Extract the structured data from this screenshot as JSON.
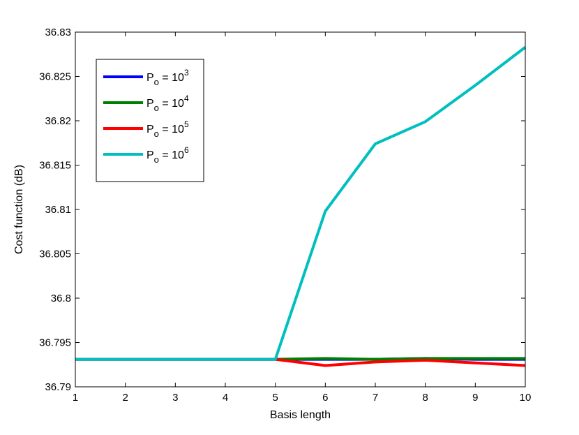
{
  "chart_data": {
    "type": "line",
    "title": "",
    "xlabel": "Basis length",
    "ylabel": "Cost function (dB)",
    "xlim": [
      1,
      10
    ],
    "ylim": [
      36.79,
      36.83
    ],
    "xticks": [
      1,
      2,
      3,
      4,
      5,
      6,
      7,
      8,
      9,
      10
    ],
    "yticks": [
      36.79,
      36.795,
      36.8,
      36.805,
      36.81,
      36.815,
      36.82,
      36.825,
      36.83
    ],
    "ytick_labels": [
      "36.79",
      "36.795",
      "36.8",
      "36.805",
      "36.81",
      "36.815",
      "36.82",
      "36.825",
      "36.83"
    ],
    "grid": false,
    "legend_position": "top-left",
    "x": [
      1,
      2,
      3,
      4,
      5,
      6,
      7,
      8,
      9,
      10
    ],
    "series": [
      {
        "name_base": "P",
        "name_sub": "o",
        "name_mid": " = 10",
        "name_sup": "3",
        "color": "#0000ff",
        "values": [
          36.7931,
          36.7931,
          36.7931,
          36.7931,
          36.7931,
          36.7931,
          36.7931,
          36.7932,
          36.7931,
          36.7931
        ]
      },
      {
        "name_base": "P",
        "name_sub": "o",
        "name_mid": " = 10",
        "name_sup": "4",
        "color": "#008000",
        "values": [
          36.7931,
          36.7931,
          36.7931,
          36.7931,
          36.7931,
          36.7932,
          36.7931,
          36.7932,
          36.7932,
          36.7932
        ]
      },
      {
        "name_base": "P",
        "name_sub": "o",
        "name_mid": " = 10",
        "name_sup": "5",
        "color": "#ff0000",
        "values": [
          36.7931,
          36.7931,
          36.7931,
          36.7931,
          36.7931,
          36.7924,
          36.7928,
          36.793,
          36.7927,
          36.7924
        ]
      },
      {
        "name_base": "P",
        "name_sub": "o",
        "name_mid": " = 10",
        "name_sup": "6",
        "color": "#00bfbf",
        "values": [
          36.7931,
          36.7931,
          36.7931,
          36.7931,
          36.7931,
          36.8098,
          36.8174,
          36.8199,
          36.824,
          36.8283
        ]
      }
    ]
  }
}
